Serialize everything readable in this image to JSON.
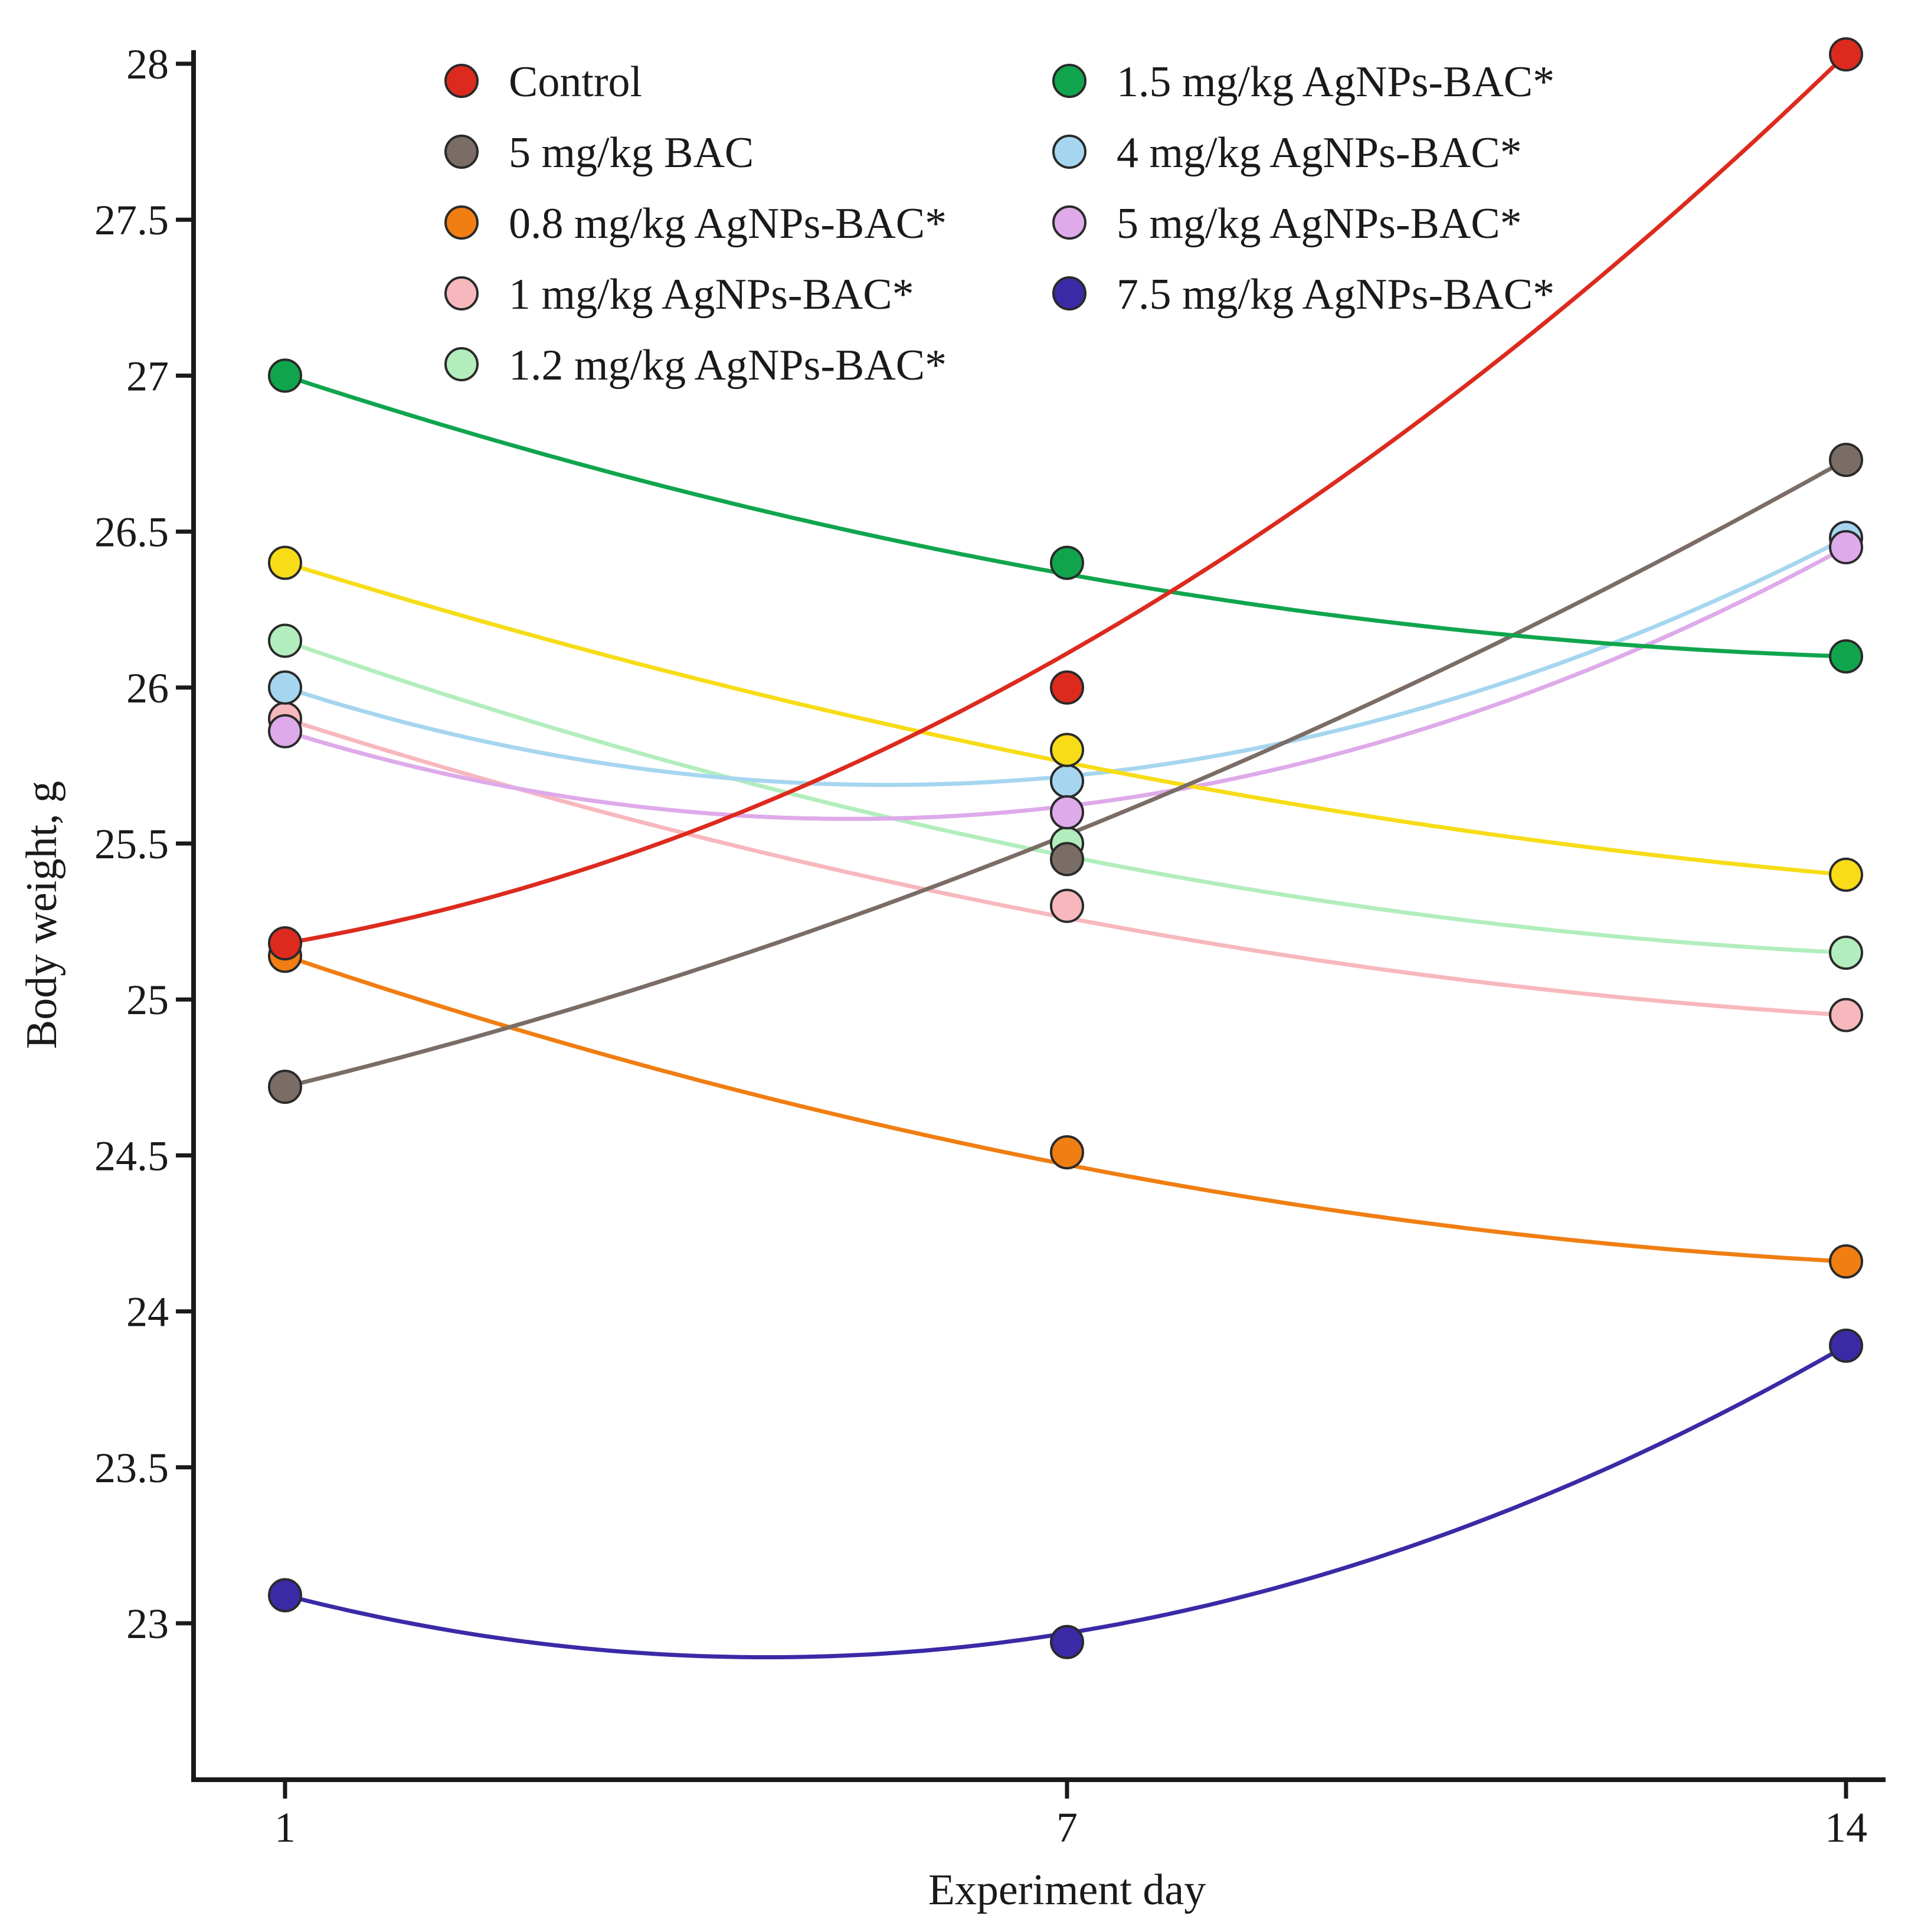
{
  "chart_data": {
    "type": "line",
    "title": "",
    "xlabel": "Experiment day",
    "ylabel": "Body weight, g",
    "x": [
      1,
      7,
      14
    ],
    "xticks": [
      "1",
      "7",
      "14"
    ],
    "ylim": [
      22.5,
      28.05
    ],
    "yticks": [
      23,
      23.5,
      24,
      24.5,
      25,
      25.5,
      26,
      26.5,
      27,
      27.5,
      28
    ],
    "ytick_labels": [
      "23",
      "23.5",
      "24",
      "24.5",
      "25",
      "25.5",
      "26",
      "26.5",
      "27",
      "27.5",
      "28"
    ],
    "grid": false,
    "legend_position": "top",
    "smooth": true,
    "series": [
      {
        "name": "Control",
        "color": "#dd2a1e",
        "values": [
          25.18,
          26.0,
          28.03
        ]
      },
      {
        "name": "5 mg/kg BAC",
        "color": "#7a6d66",
        "values": [
          24.72,
          25.45,
          26.73
        ]
      },
      {
        "name": "0.8 mg/kg AgNPs-BAC*",
        "color": "#f07e12",
        "values": [
          25.14,
          24.51,
          24.16
        ]
      },
      {
        "name": "1 mg/kg AgNPs-BAC*",
        "color": "#f7b8bd",
        "values": [
          25.9,
          25.3,
          24.95
        ]
      },
      {
        "name": "1.2 mg/kg AgNPs-BAC*",
        "color": "#b2eebd",
        "values": [
          26.15,
          25.5,
          25.15
        ]
      },
      {
        "name": "1.5 mg/kg AgNPs-BAC*",
        "color": "#10a54d",
        "values": [
          27.0,
          26.4,
          26.1
        ]
      },
      {
        "name": "4 mg/kg AgNPs-BAC*",
        "color": "#a6d6ef",
        "values": [
          26.0,
          25.7,
          26.48
        ]
      },
      {
        "name": "5 mg/kg AgNPs-BAC*",
        "color": "#deaaea",
        "values": [
          25.86,
          25.6,
          26.45
        ]
      },
      {
        "name": "7.5 mg/kg AgNPs-BAC*",
        "color": "#3a2aa6",
        "values": [
          23.09,
          22.94,
          23.89
        ]
      },
      {
        "name": "",
        "color": "#f7dc17",
        "values": [
          26.4,
          25.8,
          25.4
        ]
      }
    ]
  }
}
